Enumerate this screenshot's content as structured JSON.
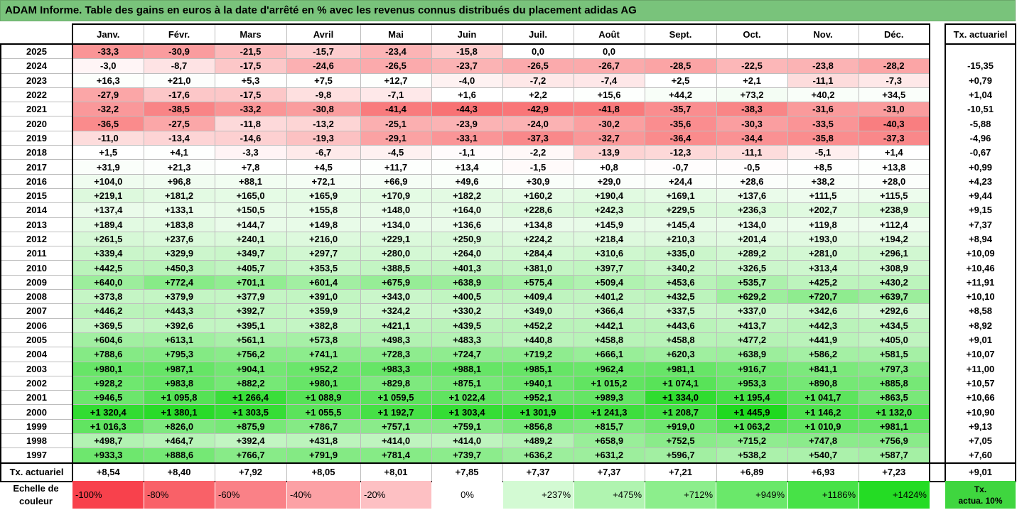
{
  "title": "ADAM Informe. Table des gains en euros à la date d'arrêté en % avec les revenus connus distribués du placement adidas AG",
  "months": [
    "Janv.",
    "Févr.",
    "Mars",
    "Avril",
    "Mai",
    "Juin",
    "Juil.",
    "Août",
    "Sept.",
    "Oct.",
    "Nov.",
    "Déc."
  ],
  "annual_header": "Tx. actuariel",
  "rows": [
    {
      "year": "2025",
      "values": [
        "-33,3",
        "-30,9",
        "-21,5",
        "-15,7",
        "-23,4",
        "-15,8",
        "0,0",
        "0,0",
        "",
        "",
        "",
        ""
      ],
      "annual": ""
    },
    {
      "year": "2024",
      "values": [
        "-3,0",
        "-8,7",
        "-17,5",
        "-24,6",
        "-26,5",
        "-23,7",
        "-26,5",
        "-26,7",
        "-28,5",
        "-22,5",
        "-23,8",
        "-28,2"
      ],
      "annual": "-15,35"
    },
    {
      "year": "2023",
      "values": [
        "+16,3",
        "+21,0",
        "+5,3",
        "+7,5",
        "+12,7",
        "-4,0",
        "-7,2",
        "-7,4",
        "+2,5",
        "+2,1",
        "-11,1",
        "-7,3"
      ],
      "annual": "+0,79"
    },
    {
      "year": "2022",
      "values": [
        "-27,9",
        "-17,6",
        "-17,5",
        "-9,8",
        "-7,1",
        "+1,6",
        "+2,2",
        "+15,6",
        "+44,2",
        "+73,2",
        "+40,2",
        "+34,5"
      ],
      "annual": "+1,04"
    },
    {
      "year": "2021",
      "values": [
        "-32,2",
        "-38,5",
        "-33,2",
        "-30,8",
        "-41,4",
        "-44,3",
        "-42,9",
        "-41,8",
        "-35,7",
        "-38,3",
        "-31,6",
        "-31,0"
      ],
      "annual": "-10,51"
    },
    {
      "year": "2020",
      "values": [
        "-36,5",
        "-27,5",
        "-11,8",
        "-13,2",
        "-25,1",
        "-23,9",
        "-24,0",
        "-30,2",
        "-35,6",
        "-30,3",
        "-33,5",
        "-40,3"
      ],
      "annual": "-5,88"
    },
    {
      "year": "2019",
      "values": [
        "-11,0",
        "-13,4",
        "-14,6",
        "-19,3",
        "-29,1",
        "-33,1",
        "-37,3",
        "-32,7",
        "-36,4",
        "-34,4",
        "-35,8",
        "-37,3"
      ],
      "annual": "-4,96"
    },
    {
      "year": "2018",
      "values": [
        "+1,5",
        "+4,1",
        "-3,3",
        "-6,7",
        "-4,5",
        "-1,1",
        "-2,2",
        "-13,9",
        "-12,3",
        "-11,1",
        "-5,1",
        "+1,4"
      ],
      "annual": "-0,67"
    },
    {
      "year": "2017",
      "values": [
        "+31,9",
        "+21,3",
        "+7,8",
        "+4,5",
        "+11,7",
        "+13,4",
        "-1,5",
        "+0,8",
        "-0,7",
        "-0,5",
        "+8,5",
        "+13,8"
      ],
      "annual": "+0,99"
    },
    {
      "year": "2016",
      "values": [
        "+104,0",
        "+96,8",
        "+88,1",
        "+72,1",
        "+66,9",
        "+49,6",
        "+30,9",
        "+29,0",
        "+24,4",
        "+28,6",
        "+38,2",
        "+28,0"
      ],
      "annual": "+4,23"
    },
    {
      "year": "2015",
      "values": [
        "+219,1",
        "+181,2",
        "+165,0",
        "+165,9",
        "+170,9",
        "+182,2",
        "+160,2",
        "+190,4",
        "+169,1",
        "+137,6",
        "+111,5",
        "+115,5"
      ],
      "annual": "+9,44"
    },
    {
      "year": "2014",
      "values": [
        "+137,4",
        "+133,1",
        "+150,5",
        "+155,8",
        "+148,0",
        "+164,0",
        "+228,6",
        "+242,3",
        "+229,5",
        "+236,3",
        "+202,7",
        "+238,9"
      ],
      "annual": "+9,15"
    },
    {
      "year": "2013",
      "values": [
        "+189,4",
        "+183,8",
        "+144,7",
        "+149,8",
        "+134,0",
        "+136,6",
        "+134,8",
        "+145,9",
        "+145,4",
        "+134,0",
        "+119,8",
        "+112,4"
      ],
      "annual": "+7,37"
    },
    {
      "year": "2012",
      "values": [
        "+261,5",
        "+237,6",
        "+240,1",
        "+216,0",
        "+229,1",
        "+250,9",
        "+224,2",
        "+218,4",
        "+210,3",
        "+201,4",
        "+193,0",
        "+194,2"
      ],
      "annual": "+8,94"
    },
    {
      "year": "2011",
      "values": [
        "+339,4",
        "+329,9",
        "+349,7",
        "+297,7",
        "+280,0",
        "+264,0",
        "+284,4",
        "+310,6",
        "+335,0",
        "+289,2",
        "+281,0",
        "+296,1"
      ],
      "annual": "+10,09"
    },
    {
      "year": "2010",
      "values": [
        "+442,5",
        "+450,3",
        "+405,7",
        "+353,5",
        "+388,5",
        "+401,3",
        "+381,0",
        "+397,7",
        "+340,2",
        "+326,5",
        "+313,4",
        "+308,9"
      ],
      "annual": "+10,46"
    },
    {
      "year": "2009",
      "values": [
        "+640,0",
        "+772,4",
        "+701,1",
        "+601,4",
        "+675,9",
        "+638,9",
        "+575,4",
        "+509,4",
        "+453,6",
        "+535,7",
        "+425,2",
        "+430,2"
      ],
      "annual": "+11,91"
    },
    {
      "year": "2008",
      "values": [
        "+373,8",
        "+379,9",
        "+377,9",
        "+391,0",
        "+343,0",
        "+400,5",
        "+409,4",
        "+401,2",
        "+432,5",
        "+629,2",
        "+720,7",
        "+639,7"
      ],
      "annual": "+10,10"
    },
    {
      "year": "2007",
      "values": [
        "+446,2",
        "+443,3",
        "+392,7",
        "+359,9",
        "+324,2",
        "+330,2",
        "+349,0",
        "+366,4",
        "+337,5",
        "+337,0",
        "+342,6",
        "+292,6"
      ],
      "annual": "+8,58"
    },
    {
      "year": "2006",
      "values": [
        "+369,5",
        "+392,6",
        "+395,1",
        "+382,8",
        "+421,1",
        "+439,5",
        "+452,2",
        "+442,1",
        "+443,6",
        "+413,7",
        "+442,3",
        "+434,5"
      ],
      "annual": "+8,92"
    },
    {
      "year": "2005",
      "values": [
        "+604,6",
        "+613,1",
        "+561,1",
        "+573,8",
        "+498,3",
        "+483,3",
        "+440,8",
        "+458,8",
        "+458,8",
        "+477,2",
        "+441,9",
        "+405,0"
      ],
      "annual": "+9,01"
    },
    {
      "year": "2004",
      "values": [
        "+788,6",
        "+795,3",
        "+756,2",
        "+741,1",
        "+728,3",
        "+724,7",
        "+719,2",
        "+666,1",
        "+620,3",
        "+638,9",
        "+586,2",
        "+581,5"
      ],
      "annual": "+10,07"
    },
    {
      "year": "2003",
      "values": [
        "+980,1",
        "+987,1",
        "+904,1",
        "+952,2",
        "+983,3",
        "+988,1",
        "+985,1",
        "+962,4",
        "+981,1",
        "+916,7",
        "+841,1",
        "+797,3"
      ],
      "annual": "+11,00"
    },
    {
      "year": "2002",
      "values": [
        "+928,2",
        "+983,8",
        "+882,2",
        "+980,1",
        "+829,8",
        "+875,1",
        "+940,1",
        "+1 015,2",
        "+1 074,1",
        "+953,3",
        "+890,8",
        "+885,8"
      ],
      "annual": "+10,57"
    },
    {
      "year": "2001",
      "values": [
        "+946,5",
        "+1 095,8",
        "+1 266,4",
        "+1 088,9",
        "+1 059,5",
        "+1 022,4",
        "+952,1",
        "+989,3",
        "+1 334,0",
        "+1 195,4",
        "+1 041,7",
        "+863,5"
      ],
      "annual": "+10,66"
    },
    {
      "year": "2000",
      "values": [
        "+1 320,4",
        "+1 380,1",
        "+1 303,5",
        "+1 055,5",
        "+1 192,7",
        "+1 303,4",
        "+1 301,9",
        "+1 241,3",
        "+1 208,7",
        "+1 445,9",
        "+1 146,2",
        "+1 132,0"
      ],
      "annual": "+10,90"
    },
    {
      "year": "1999",
      "values": [
        "+1 016,3",
        "+826,0",
        "+875,9",
        "+786,7",
        "+757,1",
        "+759,1",
        "+856,8",
        "+815,7",
        "+919,0",
        "+1 063,2",
        "+1 010,9",
        "+981,1"
      ],
      "annual": "+9,13"
    },
    {
      "year": "1998",
      "values": [
        "+498,7",
        "+464,7",
        "+392,4",
        "+431,8",
        "+414,0",
        "+414,0",
        "+489,2",
        "+658,9",
        "+752,5",
        "+715,2",
        "+747,8",
        "+756,9"
      ],
      "annual": "+7,05"
    },
    {
      "year": "1997",
      "values": [
        "+933,3",
        "+888,6",
        "+766,7",
        "+791,9",
        "+781,4",
        "+739,7",
        "+636,2",
        "+631,2",
        "+596,7",
        "+538,2",
        "+540,7",
        "+587,7"
      ],
      "annual": "+7,60"
    }
  ],
  "tx_row": {
    "label": "Tx. actuariel",
    "values": [
      "+8,54",
      "+8,40",
      "+7,92",
      "+8,05",
      "+8,01",
      "+7,85",
      "+7,37",
      "+7,37",
      "+7,21",
      "+6,89",
      "+6,93",
      "+7,23"
    ],
    "annual": "+9,01"
  },
  "legend": {
    "label_line1": "Echelle de",
    "label_line2": "couleur",
    "items": [
      "-100%",
      "-80%",
      "-60%",
      "-40%",
      "-20%",
      "0%",
      "+237%",
      "+475%",
      "+712%",
      "+949%",
      "+1186%",
      "+1424%"
    ],
    "colors": [
      "#f8414c",
      "#f96168",
      "#fa8187",
      "#fca1a5",
      "#fdc0c3",
      "#ffffff",
      "#d3fad3",
      "#b0f4b0",
      "#8cee8c",
      "#6ae86a",
      "#47e247",
      "#24dc24"
    ],
    "tx_line1": "Tx.",
    "tx_line2": "actua. 10%",
    "tx_color": "#3fd63f"
  },
  "colors": {
    "title_bg": "#79c37b",
    "negative_max": "#f8696b",
    "neutral": "#ffffff",
    "positive_max": "#1ed91e"
  }
}
